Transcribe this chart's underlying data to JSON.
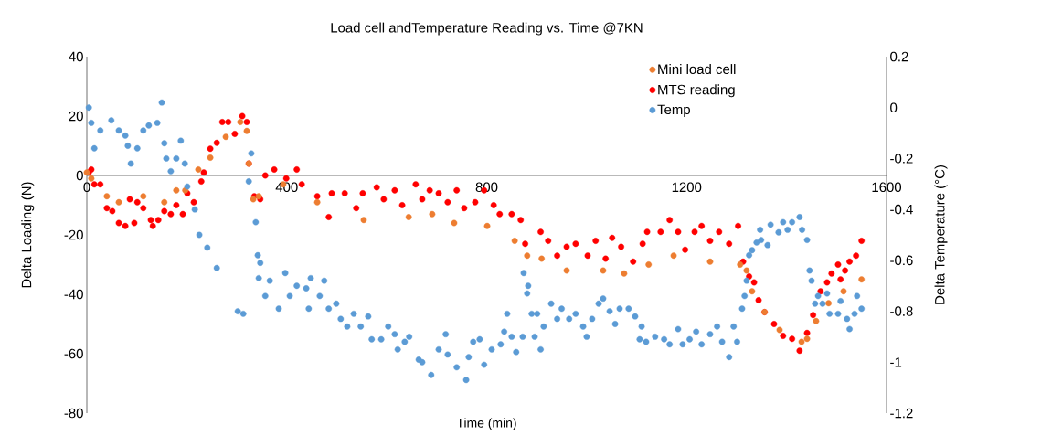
{
  "chart_data": {
    "type": "scatter",
    "title": "Load cell andTemperature Reading vs. Time @7KN",
    "xlabel": "Time (min)",
    "ylabel": "Delta Loading (N)",
    "y2label": "Delta Temperature (°C)",
    "xlim": [
      0,
      1600
    ],
    "xticks": [
      0,
      400,
      800,
      1200,
      1600
    ],
    "ylim": [
      -80,
      40
    ],
    "yticks": [
      -80,
      -60,
      -40,
      -20,
      0,
      20,
      40
    ],
    "y2lim": [
      -1.2,
      0.2
    ],
    "y2ticks": [
      -1.2,
      -1,
      -0.8,
      -0.6,
      -0.4,
      -0.2,
      0,
      0.2
    ],
    "marker": "circle",
    "legend": "top right",
    "grid": false,
    "series": [
      {
        "name": "Mini load cell",
        "color": "#ed7d31",
        "x": [
          0,
          9,
          40,
          64,
          113,
          155,
          179,
          197,
          223,
          247,
          278,
          307,
          320,
          324,
          333,
          344,
          393,
          461,
          554,
          644,
          691,
          735,
          801,
          856,
          881,
          910,
          960,
          1033,
          1075,
          1124,
          1174,
          1247,
          1307,
          1320,
          1331,
          1356,
          1386,
          1430,
          1441,
          1459,
          1484,
          1514,
          1550
        ],
        "values": [
          1,
          -1,
          -7,
          -9,
          -7,
          -9,
          -5,
          -5,
          2,
          6,
          13,
          18,
          15,
          4,
          -8,
          -7,
          -3,
          -9,
          -15,
          -14,
          -13,
          -16,
          -17,
          -22,
          -27,
          -28,
          -32,
          -32,
          -33,
          -30,
          -27,
          -29,
          -30,
          -32,
          -39,
          -46,
          -52,
          -56,
          -55,
          -49,
          -43,
          -39,
          -35
        ]
      },
      {
        "name": "MTS reading",
        "color": "#ff0000",
        "x": [
          4,
          9,
          15,
          27,
          40,
          51,
          64,
          77,
          86,
          95,
          101,
          113,
          128,
          132,
          143,
          155,
          168,
          179,
          192,
          201,
          214,
          229,
          234,
          247,
          260,
          271,
          283,
          296,
          311,
          320,
          324,
          335,
          347,
          357,
          375,
          399,
          420,
          430,
          461,
          484,
          490,
          516,
          539,
          552,
          580,
          594,
          616,
          631,
          658,
          671,
          686,
          704,
          722,
          740,
          755,
          777,
          795,
          814,
          826,
          850,
          868,
          877,
          908,
          923,
          941,
          960,
          978,
          1002,
          1018,
          1038,
          1051,
          1069,
          1093,
          1112,
          1121,
          1148,
          1166,
          1183,
          1197,
          1216,
          1230,
          1247,
          1265,
          1285,
          1303,
          1313,
          1325,
          1335,
          1344,
          1356,
          1375,
          1393,
          1411,
          1426,
          1441,
          1453,
          1468,
          1481,
          1490,
          1503,
          1508,
          1517,
          1526,
          1539,
          1550
        ],
        "values": [
          1,
          2,
          -3,
          -3,
          -11,
          -12,
          -16,
          -17,
          -8,
          -16,
          -9,
          -11,
          -15,
          -17,
          -15,
          -12,
          -13,
          -10,
          -13,
          -6,
          -9,
          -2,
          1,
          9,
          11,
          18,
          18,
          14,
          20,
          18,
          4,
          -7,
          -8,
          0,
          2,
          -1,
          2,
          -3,
          -7,
          -14,
          -6,
          -6,
          -11,
          -6,
          -4,
          -8,
          -5,
          -10,
          -3,
          -8,
          -5,
          -6,
          -9,
          -5,
          -11,
          -9,
          -5,
          -10,
          -13,
          -13,
          -15,
          -23,
          -19,
          -22,
          -27,
          -24,
          -23,
          -27,
          -22,
          -28,
          -21,
          -24,
          -29,
          -23,
          -19,
          -19,
          -15,
          -19,
          -25,
          -19,
          -17,
          -22,
          -19,
          -23,
          -17,
          -29,
          -34,
          -36,
          -42,
          -46,
          -50,
          -54,
          -55,
          -59,
          -53,
          -47,
          -39,
          -36,
          -33,
          -30,
          -35,
          -32,
          -29,
          -27,
          -22
        ]
      },
      {
        "name": "Temp",
        "color": "#5b9bd5",
        "axis": "y2",
        "x": [
          4,
          9,
          15,
          27,
          49,
          64,
          77,
          82,
          88,
          101,
          113,
          124,
          141,
          150,
          155,
          159,
          168,
          179,
          188,
          196,
          201,
          216,
          225,
          241,
          260,
          302,
          313,
          324,
          329,
          338,
          342,
          347,
          344,
          357,
          366,
          384,
          397,
          406,
          420,
          439,
          448,
          444,
          466,
          475,
          484,
          499,
          508,
          521,
          534,
          548,
          563,
          570,
          589,
          603,
          616,
          622,
          636,
          645,
          664,
          671,
          689,
          704,
          718,
          722,
          740,
          759,
          764,
          773,
          786,
          795,
          810,
          828,
          835,
          841,
          850,
          859,
          872,
          874,
          881,
          883,
          890,
          901,
          896,
          908,
          914,
          929,
          941,
          950,
          965,
          978,
          993,
          1000,
          1011,
          1024,
          1033,
          1046,
          1057,
          1066,
          1084,
          1097,
          1110,
          1106,
          1119,
          1137,
          1155,
          1166,
          1183,
          1192,
          1206,
          1219,
          1230,
          1247,
          1261,
          1271,
          1285,
          1294,
          1301,
          1311,
          1316,
          1320,
          1325,
          1331,
          1340,
          1349,
          1347,
          1362,
          1368,
          1384,
          1393,
          1402,
          1411,
          1426,
          1431,
          1441,
          1446,
          1450,
          1463,
          1457,
          1472,
          1481,
          1486,
          1503,
          1508,
          1521,
          1526,
          1536,
          1541,
          1550
        ],
        "values": [
          0.0,
          -0.06,
          -0.16,
          -0.09,
          -0.05,
          -0.09,
          -0.11,
          -0.15,
          -0.22,
          -0.16,
          -0.09,
          -0.07,
          -0.06,
          0.02,
          -0.14,
          -0.2,
          -0.25,
          -0.2,
          -0.13,
          -0.22,
          -0.31,
          -0.4,
          -0.5,
          -0.55,
          -0.63,
          -0.8,
          -0.81,
          -0.29,
          -0.18,
          -0.45,
          -0.58,
          -0.61,
          -0.67,
          -0.74,
          -0.68,
          -0.79,
          -0.65,
          -0.74,
          -0.7,
          -0.71,
          -0.67,
          -0.79,
          -0.74,
          -0.68,
          -0.79,
          -0.77,
          -0.83,
          -0.86,
          -0.81,
          -0.86,
          -0.82,
          -0.91,
          -0.91,
          -0.86,
          -0.89,
          -0.95,
          -0.92,
          -0.9,
          -0.99,
          -1.0,
          -1.05,
          -0.95,
          -0.89,
          -0.97,
          -1.02,
          -1.07,
          -0.98,
          -0.92,
          -0.91,
          -1.01,
          -0.95,
          -0.93,
          -0.88,
          -0.81,
          -0.9,
          -0.96,
          -0.9,
          -0.65,
          -0.73,
          -0.7,
          -0.81,
          -0.81,
          -0.9,
          -0.95,
          -0.86,
          -0.77,
          -0.83,
          -0.79,
          -0.83,
          -0.81,
          -0.86,
          -0.9,
          -0.83,
          -0.77,
          -0.75,
          -0.8,
          -0.85,
          -0.79,
          -0.79,
          -0.82,
          -0.86,
          -0.91,
          -0.92,
          -0.9,
          -0.91,
          -0.93,
          -0.87,
          -0.93,
          -0.91,
          -0.88,
          -0.93,
          -0.89,
          -0.86,
          -0.92,
          -0.98,
          -0.86,
          -0.92,
          -0.79,
          -0.74,
          -0.68,
          -0.58,
          -0.56,
          -0.53,
          -0.52,
          -0.48,
          -0.54,
          -0.46,
          -0.49,
          -0.45,
          -0.48,
          -0.45,
          -0.43,
          -0.48,
          -0.52,
          -0.64,
          -0.68,
          -0.74,
          -0.77,
          -0.77,
          -0.73,
          -0.81,
          -0.81,
          -0.76,
          -0.83,
          -0.87,
          -0.81,
          -0.74,
          -0.79
        ]
      }
    ]
  }
}
